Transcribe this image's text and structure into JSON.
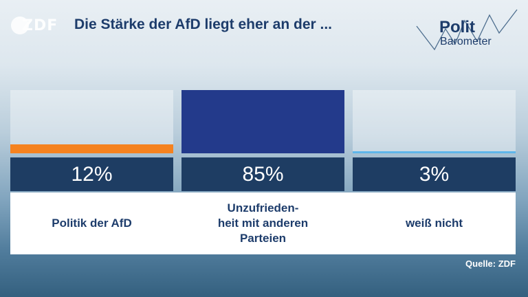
{
  "logo": {
    "text": "ZDF"
  },
  "headline": "Die Stärke der AfD liegt eher an der ...",
  "brand": {
    "line1": "Polit",
    "line2": "Barometer"
  },
  "colors": {
    "navy": "#1d3c6b",
    "value_box": "#1e3d63",
    "series": [
      "#f5821f",
      "#233a8b",
      "#5fb6ea"
    ]
  },
  "chart_data": {
    "type": "bar",
    "title": "Die Stärke der AfD liegt eher an der ...",
    "unit": "%",
    "ylim": [
      0,
      85
    ],
    "categories": [
      "Politik der AfD",
      "Unzufrieden-\nheit mit anderen\nParteien",
      "weiß nicht"
    ],
    "values": [
      12,
      85,
      3
    ],
    "value_labels": [
      "12%",
      "85%",
      "3%"
    ],
    "colors": [
      "#f5821f",
      "#233a8b",
      "#5fb6ea"
    ]
  },
  "source": "Quelle: ZDF"
}
